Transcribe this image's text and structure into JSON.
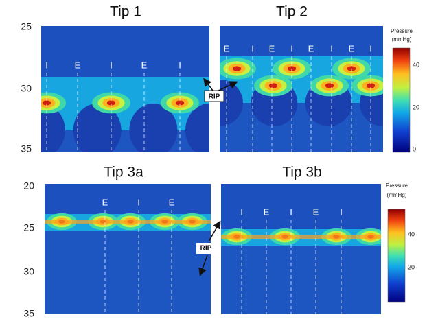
{
  "panels": [
    {
      "title": "Tip 1",
      "yticks": [
        "25",
        "30",
        "35"
      ],
      "annotations": [
        "I",
        "E",
        "I",
        "E",
        "I"
      ]
    },
    {
      "title": "Tip 2",
      "yticks": [],
      "annotations": [
        "E",
        "I",
        "E",
        "I",
        "E",
        "I",
        "E",
        "I"
      ]
    },
    {
      "title": "Tip 3a",
      "yticks": [
        "20",
        "25",
        "30",
        "35"
      ],
      "annotations": [
        "E",
        "I",
        "E"
      ]
    },
    {
      "title": "Tip 3b",
      "yticks": [],
      "annotations": [
        "I",
        "E",
        "I",
        "E",
        "I"
      ]
    }
  ],
  "colorbars": [
    {
      "title": "Pressure",
      "unit": "(mmHg)",
      "ticks": [
        "40",
        "20",
        "0"
      ]
    },
    {
      "title": "Pressure",
      "unit": "(mmHg)",
      "ticks": [
        "40",
        "20"
      ]
    }
  ],
  "rip_labels": [
    "RIP",
    "RIP"
  ]
}
